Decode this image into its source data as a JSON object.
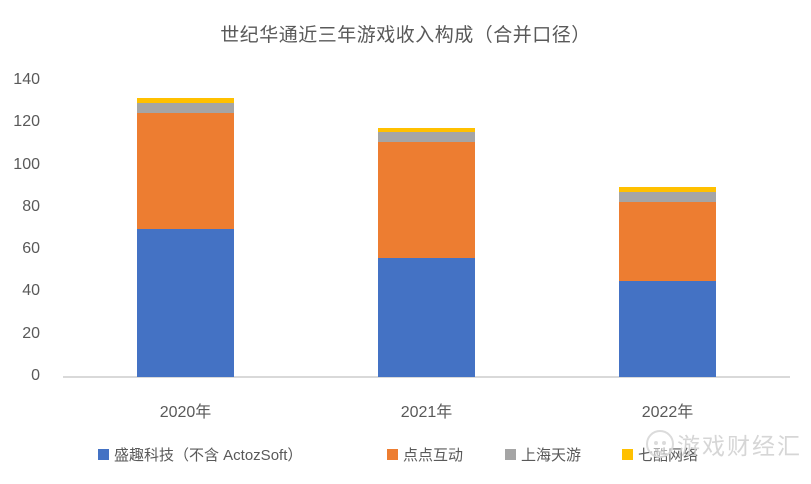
{
  "title": "世纪华通近三年游戏收入构成（合并口径）",
  "watermark": {
    "logo": "games-finance-logo",
    "text": "游戏财经汇"
  },
  "colors": {
    "series_blue": "#4472C4",
    "series_orange": "#ED7D31",
    "series_gray": "#A5A5A5",
    "series_yellow": "#FFC000",
    "axis_line": "#D9D9D9",
    "text": "#595959",
    "watermark": "#D2D2D2",
    "background": "#FFFFFF"
  },
  "chart_data": {
    "type": "bar",
    "stacked": true,
    "title": "世纪华通近三年游戏收入构成（合并口径）",
    "categories": [
      "2020年",
      "2021年",
      "2022年"
    ],
    "series": [
      {
        "name": "盛趣科技（不含 ActozSoft）",
        "color": "#4472C4",
        "values": [
          70,
          56.5,
          45.5
        ]
      },
      {
        "name": "点点互动",
        "color": "#ED7D31",
        "values": [
          55,
          54.5,
          37.5
        ]
      },
      {
        "name": "上海天游",
        "color": "#A5A5A5",
        "values": [
          4.5,
          5,
          4.5
        ]
      },
      {
        "name": "七酷网络",
        "color": "#FFC000",
        "values": [
          2.5,
          2,
          2.5
        ]
      }
    ],
    "totals": [
      132,
      118,
      90
    ],
    "xlabel": "",
    "ylabel": "",
    "ylim": [
      0,
      140
    ],
    "yticks": [
      0,
      20,
      40,
      60,
      80,
      100,
      120,
      140
    ],
    "grid": false,
    "legend_position": "bottom"
  }
}
